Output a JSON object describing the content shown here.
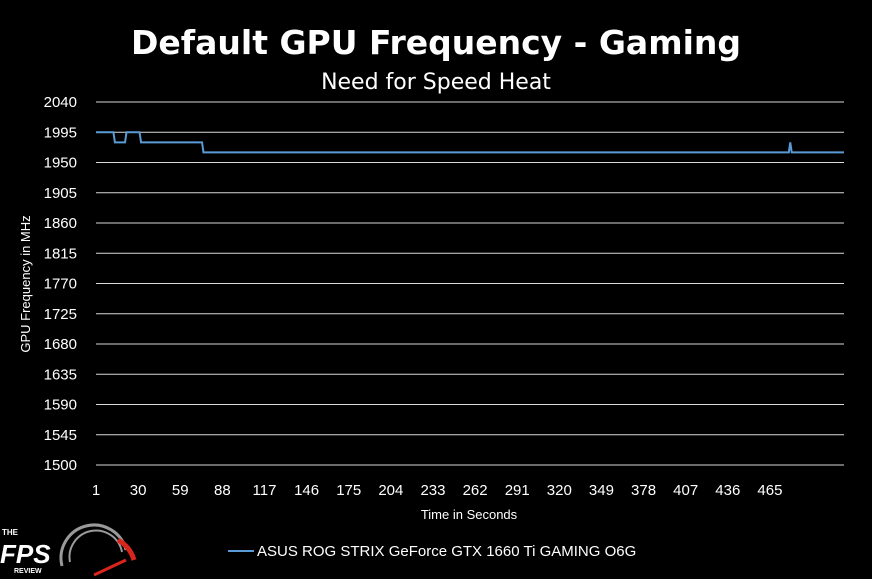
{
  "chart_data": {
    "type": "line",
    "title": "Default GPU Frequency - Gaming",
    "subtitle": "Need for Speed Heat",
    "xlabel": "Time in Seconds",
    "ylabel": "GPU Frequency in MHz",
    "ylim": [
      1500,
      2040
    ],
    "yticks": [
      2040,
      1995,
      1950,
      1905,
      1860,
      1815,
      1770,
      1725,
      1680,
      1635,
      1590,
      1545,
      1500
    ],
    "xlim": [
      1,
      516
    ],
    "xticks": [
      1,
      30,
      59,
      88,
      117,
      146,
      175,
      204,
      233,
      262,
      291,
      320,
      349,
      378,
      407,
      436,
      465
    ],
    "grid": true,
    "legend_position": "bottom",
    "series": [
      {
        "name": "ASUS ROG STRIX GeForce GTX 1660 Ti GAMING O6G",
        "color": "#5b9bd5",
        "points": [
          [
            1,
            1995
          ],
          [
            13,
            1995
          ],
          [
            14,
            1980
          ],
          [
            21,
            1980
          ],
          [
            22,
            1995
          ],
          [
            31,
            1995
          ],
          [
            32,
            1980
          ],
          [
            74,
            1980
          ],
          [
            75,
            1965
          ],
          [
            478,
            1965
          ],
          [
            479,
            1980
          ],
          [
            480,
            1965
          ],
          [
            516,
            1965
          ]
        ]
      }
    ]
  },
  "logo": {
    "the": "THE",
    "fps": "FPS",
    "review": "REVIEW",
    "colors": {
      "gauge_red": "#d9261c",
      "gauge_gray": "#9a9a9a"
    }
  }
}
